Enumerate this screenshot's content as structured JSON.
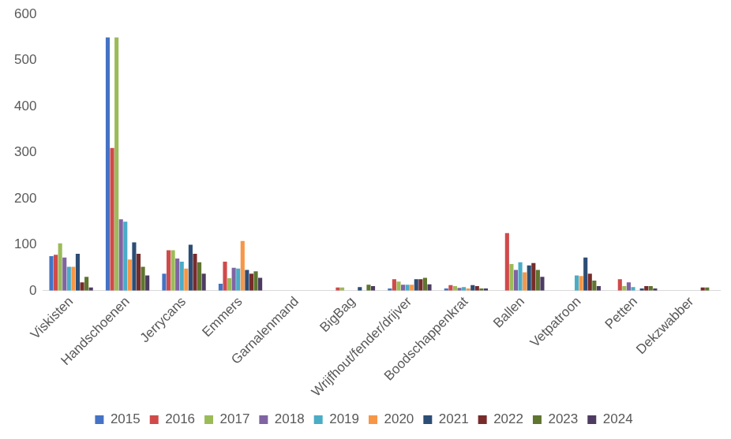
{
  "chart_data": {
    "type": "bar",
    "categories": [
      "Viskisten",
      "Handschoenen",
      "Jerrycans",
      "Emmers",
      "Garnalenmand",
      "BigBag",
      "Wrijfhout/fender/drijver",
      "Boodschappenkrat",
      "Ballen",
      "Vetpatroon",
      "Petten",
      "Dekzwabber"
    ],
    "series": [
      {
        "name": "2015",
        "color": "#4472c4",
        "values": [
          75,
          550,
          37,
          15,
          0,
          0,
          5,
          5,
          0,
          0,
          0,
          0
        ]
      },
      {
        "name": "2016",
        "color": "#d04a4a",
        "values": [
          78,
          310,
          88,
          63,
          0,
          7,
          25,
          12,
          125,
          0,
          25,
          0
        ]
      },
      {
        "name": "2017",
        "color": "#9bbb59",
        "values": [
          103,
          550,
          88,
          27,
          0,
          7,
          20,
          10,
          58,
          0,
          10,
          0
        ]
      },
      {
        "name": "2018",
        "color": "#8064a2",
        "values": [
          72,
          155,
          70,
          50,
          0,
          0,
          13,
          6,
          45,
          0,
          18,
          0
        ]
      },
      {
        "name": "2019",
        "color": "#4bacc6",
        "values": [
          52,
          150,
          63,
          48,
          0,
          0,
          13,
          8,
          62,
          33,
          8,
          0
        ]
      },
      {
        "name": "2020",
        "color": "#f79646",
        "values": [
          52,
          68,
          48,
          108,
          0,
          0,
          13,
          5,
          40,
          32,
          0,
          0
        ]
      },
      {
        "name": "2021",
        "color": "#2c4d75",
        "values": [
          80,
          105,
          100,
          45,
          0,
          8,
          25,
          12,
          55,
          72,
          5,
          0
        ]
      },
      {
        "name": "2022",
        "color": "#772c2a",
        "values": [
          18,
          80,
          80,
          37,
          0,
          0,
          25,
          10,
          60,
          37,
          10,
          7
        ]
      },
      {
        "name": "2023",
        "color": "#5f7530",
        "values": [
          30,
          52,
          62,
          42,
          0,
          13,
          28,
          5,
          45,
          22,
          10,
          7
        ]
      },
      {
        "name": "2024",
        "color": "#4d3b62",
        "values": [
          7,
          33,
          37,
          28,
          0,
          10,
          14,
          5,
          30,
          10,
          5,
          0
        ]
      }
    ],
    "ylim": [
      0,
      600
    ],
    "yticks": [
      0,
      100,
      200,
      300,
      400,
      500,
      600
    ],
    "grid": false,
    "legend": "bottom"
  }
}
